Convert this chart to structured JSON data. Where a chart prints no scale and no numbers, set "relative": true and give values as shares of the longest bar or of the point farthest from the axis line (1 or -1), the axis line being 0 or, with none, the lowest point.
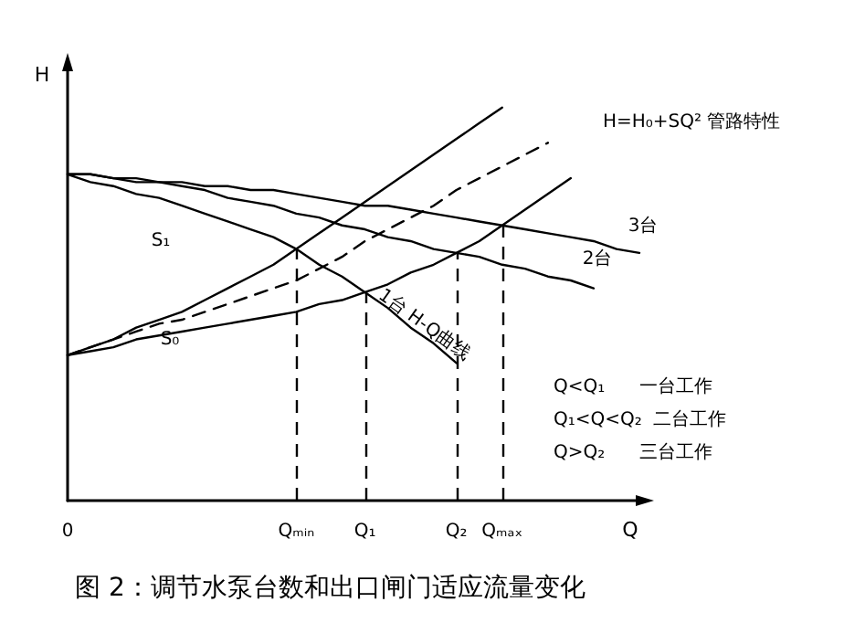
{
  "chart_data": {
    "type": "line",
    "relative": true,
    "title": "图 2：调节水泵台数和出口闸门适应流量变化",
    "xlabel": "Q",
    "ylabel": "H",
    "categories": [
      "0",
      null,
      null,
      null,
      null,
      null,
      null,
      null,
      null,
      null,
      "Qₘᵢₙ",
      null,
      null,
      "Q₁",
      null,
      null,
      null,
      "Q₂",
      null,
      "Qₘₐₓ",
      null,
      null,
      null,
      null,
      null,
      null
    ],
    "grid": false,
    "marker": "none",
    "series": [
      {
        "color": "#000000",
        "values": [
          0.83,
          0.83,
          0.82,
          0.82,
          0.81,
          0.81,
          0.8,
          0.8,
          0.79,
          0.79,
          0.78,
          0.77,
          0.76,
          0.75,
          0.75,
          0.74,
          0.73,
          0.72,
          0.71,
          0.7,
          0.69,
          0.68,
          0.67,
          0.66,
          0.64,
          0.63
        ]
      },
      {
        "color": "#000000",
        "values": [
          0.83,
          0.83,
          0.82,
          0.81,
          0.81,
          0.8,
          0.79,
          0.77,
          0.76,
          0.75,
          0.73,
          0.72,
          0.7,
          0.69,
          0.67,
          0.66,
          0.64,
          0.63,
          0.62,
          0.6,
          0.59,
          0.57,
          0.56,
          0.54,
          null,
          null
        ]
      },
      {
        "color": "#000000",
        "values": [
          0.83,
          0.81,
          0.8,
          0.78,
          0.77,
          0.75,
          0.73,
          0.71,
          0.69,
          0.67,
          0.64,
          0.6,
          0.57,
          0.53,
          0.49,
          0.44,
          0.4,
          0.35,
          null,
          null,
          null,
          null,
          null,
          null,
          null,
          null
        ]
      },
      {
        "color": "#000000",
        "values": [
          0.37,
          0.39,
          0.41,
          0.44,
          0.46,
          0.48,
          0.51,
          0.54,
          0.57,
          0.6,
          0.64,
          0.68,
          0.72,
          0.76,
          0.8,
          0.84,
          0.88,
          0.92,
          0.96,
          1.0,
          null,
          null,
          null,
          null,
          null,
          null
        ]
      },
      {
        "color": "#000000",
        "line_style": "dashed",
        "values": [
          0.37,
          0.39,
          0.41,
          0.43,
          0.45,
          0.46,
          0.48,
          0.5,
          0.52,
          0.54,
          0.56,
          0.59,
          0.62,
          0.66,
          0.69,
          0.72,
          0.75,
          0.79,
          0.82,
          0.85,
          0.88,
          0.91,
          null,
          null,
          null,
          null
        ]
      },
      {
        "color": "#000000",
        "values": [
          0.37,
          0.38,
          0.39,
          0.41,
          0.42,
          0.43,
          0.44,
          0.45,
          0.46,
          0.47,
          0.48,
          0.5,
          0.51,
          0.53,
          0.55,
          0.58,
          0.6,
          0.63,
          0.66,
          0.7,
          0.74,
          0.78,
          0.82,
          null,
          null,
          null
        ]
      }
    ],
    "ref_lines": [
      {
        "axis": "x",
        "value": "Qₘᵢₙ",
        "line_style": "dashed"
      },
      {
        "axis": "x",
        "value": "Q₁",
        "line_style": "dashed"
      },
      {
        "axis": "x",
        "value": "Q₂",
        "line_style": "dashed"
      },
      {
        "axis": "x",
        "value": "Qₘₐₓ",
        "line_style": "dashed"
      }
    ],
    "annotations": [
      "3台",
      "2台",
      "S₁",
      "S₀",
      "1台 H-Q曲线",
      "H=H₀+SQ² 管路特性",
      "Q<Q₁      一台工作",
      "Q₁<Q<Q₂  二台工作",
      "Q>Q₂      三台工作"
    ]
  }
}
